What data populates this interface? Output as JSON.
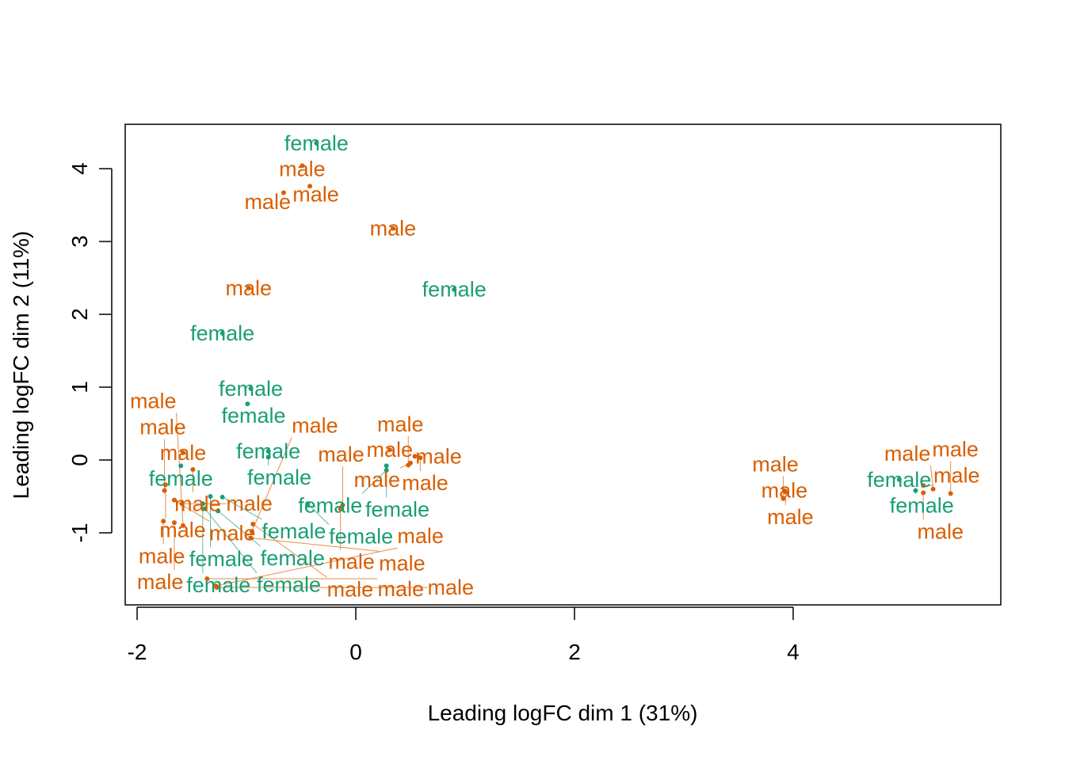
{
  "chart_data": {
    "type": "scatter",
    "title": "",
    "xlabel": "Leading logFC dim 1 (31%)",
    "ylabel": "Leading logFC dim 2 (11%)",
    "xlim": [
      -2.109,
      5.899
    ],
    "ylim": [
      -1.989,
      4.609
    ],
    "xticks": [
      -2,
      0,
      2,
      4
    ],
    "yticks": [
      -1,
      0,
      1,
      2,
      3,
      4
    ],
    "xtick_labels": [
      "-2",
      "0",
      "2",
      "4"
    ],
    "ytick_labels": [
      "-1",
      "0",
      "1",
      "2",
      "3",
      "4"
    ],
    "grid": false,
    "colors": {
      "female": "#1B9E77",
      "male": "#D95F02"
    },
    "points": [
      {
        "label": "female",
        "x": -0.36,
        "y": 4.35
      },
      {
        "label": "male",
        "x": -0.49,
        "y": 4.04
      },
      {
        "label": "male",
        "x": -0.42,
        "y": 3.76
      },
      {
        "label": "male",
        "x": -0.66,
        "y": 3.67
      },
      {
        "label": "male",
        "x": 0.34,
        "y": 3.18
      },
      {
        "label": "female",
        "x": 0.9,
        "y": 2.34
      },
      {
        "label": "male",
        "x": -0.98,
        "y": 2.36
      },
      {
        "label": "female",
        "x": -1.22,
        "y": 1.74
      },
      {
        "label": "female",
        "x": -0.96,
        "y": 0.98
      },
      {
        "label": "female",
        "x": -0.99,
        "y": 0.77
      },
      {
        "label": "male",
        "x": -1.58,
        "y": 0.1
      },
      {
        "label": "female",
        "x": -0.8,
        "y": 0.12
      },
      {
        "label": "female",
        "x": -0.8,
        "y": 0.04
      },
      {
        "label": "female",
        "x": -1.6,
        "y": -0.08
      },
      {
        "label": "male",
        "x": -1.49,
        "y": -0.13
      },
      {
        "label": "male",
        "x": 0.31,
        "y": 0.14
      },
      {
        "label": "male",
        "x": 0.54,
        "y": 0.05
      },
      {
        "label": "male",
        "x": 0.59,
        "y": 0.03
      },
      {
        "label": "male",
        "x": 0.5,
        "y": -0.04
      },
      {
        "label": "male",
        "x": 0.48,
        "y": -0.07
      },
      {
        "label": "female",
        "x": 0.28,
        "y": -0.08
      },
      {
        "label": "female",
        "x": 0.28,
        "y": -0.14
      },
      {
        "label": "male",
        "x": -1.74,
        "y": -0.34
      },
      {
        "label": "male",
        "x": -1.75,
        "y": -0.42
      },
      {
        "label": "male",
        "x": -1.66,
        "y": -0.55
      },
      {
        "label": "male",
        "x": -1.59,
        "y": -0.6
      },
      {
        "label": "female",
        "x": -1.33,
        "y": -0.5
      },
      {
        "label": "female",
        "x": -1.22,
        "y": -0.51
      },
      {
        "label": "female",
        "x": -1.4,
        "y": -0.6
      },
      {
        "label": "female",
        "x": -1.26,
        "y": -0.7
      },
      {
        "label": "female",
        "x": -1.38,
        "y": -0.67
      },
      {
        "label": "female",
        "x": -0.44,
        "y": -0.6
      },
      {
        "label": "male",
        "x": -0.12,
        "y": -0.62
      },
      {
        "label": "male",
        "x": -0.14,
        "y": -0.67
      },
      {
        "label": "male",
        "x": -1.76,
        "y": -0.84
      },
      {
        "label": "male",
        "x": -1.66,
        "y": -0.86
      },
      {
        "label": "male",
        "x": -1.58,
        "y": -0.9
      },
      {
        "label": "male",
        "x": -0.94,
        "y": -0.88
      },
      {
        "label": "male",
        "x": -0.95,
        "y": -0.98
      },
      {
        "label": "male",
        "x": -0.96,
        "y": -1.07
      },
      {
        "label": "male",
        "x": -1.36,
        "y": -1.63
      },
      {
        "label": "male",
        "x": -1.28,
        "y": -1.73
      },
      {
        "label": "male",
        "x": -1.27,
        "y": -1.75
      },
      {
        "label": "male",
        "x": 3.92,
        "y": -0.42
      },
      {
        "label": "male",
        "x": 3.93,
        "y": -0.44
      },
      {
        "label": "male",
        "x": 3.91,
        "y": -0.53
      },
      {
        "label": "female",
        "x": 4.97,
        "y": -0.27
      },
      {
        "label": "female",
        "x": 5.12,
        "y": -0.42
      },
      {
        "label": "male",
        "x": 5.19,
        "y": -0.35
      },
      {
        "label": "male",
        "x": 5.28,
        "y": -0.4
      },
      {
        "label": "male",
        "x": 5.19,
        "y": -0.45
      },
      {
        "label": "male",
        "x": 5.44,
        "y": -0.46
      }
    ]
  }
}
